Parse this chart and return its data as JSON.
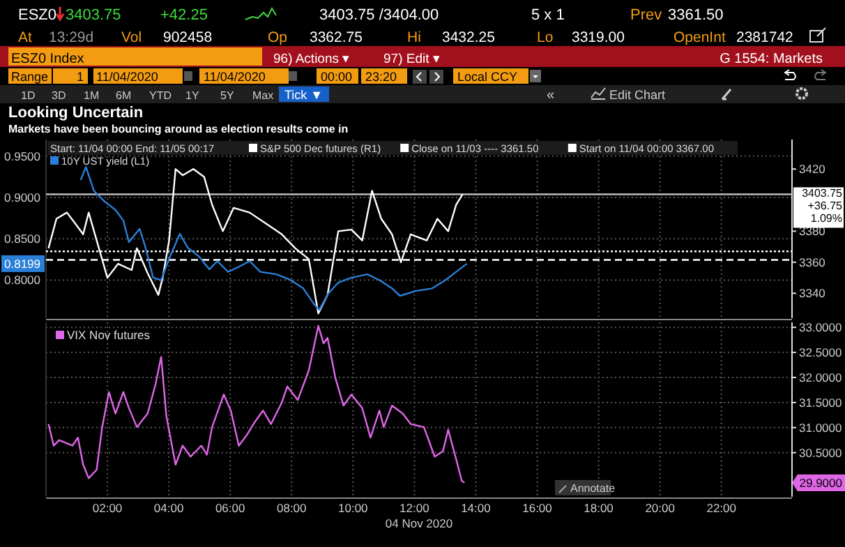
{
  "chart_data": [
    {
      "type": "line",
      "title": "Looking Uncertain",
      "subtitle": "Markets have been bouncing around as election results come in",
      "annotations": [
        "ESZ0",
        "3403.75",
        "+42.25",
        "3403.75 /3404.00",
        "5 x 1",
        "Prev",
        "3361.50",
        "At",
        "13:29d",
        "Vol",
        "902458",
        "Op",
        "3362.75",
        "Hi",
        "3432.25",
        "Lo",
        "3319.00",
        "OpenInt",
        "2381742",
        "ESZ0 Index",
        "96) Actions ▾",
        "97) Edit ▾",
        "G 1554: Markets",
        "Range",
        "1",
        "11/04/2020",
        "11/04/2020",
        "00:00",
        "23:20",
        "Local CCY",
        "1D",
        "3D",
        "1M",
        "6M",
        "YTD",
        "1Y",
        "5Y",
        "Max",
        "Tick ▼",
        "«",
        "Edit Chart",
        "Start: 11/04 00:00 End: 11/05 00:17",
        "0.8199"
      ],
      "xlim": [
        0,
        24.3
      ],
      "xticks": [
        {
          "value": 2,
          "label": null
        },
        {
          "value": 4,
          "label": null
        },
        {
          "value": 6,
          "label": null
        },
        {
          "value": 8,
          "label": null
        },
        {
          "value": 10,
          "label": null
        },
        {
          "value": 12,
          "label": null
        },
        {
          "value": 14,
          "label": null
        },
        {
          "value": 16,
          "label": null
        },
        {
          "value": 18,
          "label": null
        },
        {
          "value": 20,
          "label": null
        },
        {
          "value": 22,
          "label": null
        }
      ],
      "ylim": [
        0.754,
        0.97
      ],
      "yticks": [
        {
          "value": 0.8,
          "label": "0.8000"
        },
        {
          "value": 0.85,
          "label": "0.8500"
        },
        {
          "value": 0.9,
          "label": "0.9000"
        },
        {
          "value": 0.95,
          "label": "0.9500"
        }
      ],
      "y2lim": [
        3324,
        3439
      ],
      "y2ticks": [
        3340,
        3360,
        3380,
        3420
      ],
      "tick_labels": "y",
      "grid": true,
      "legend": "top left",
      "line_style": "solid",
      "ref_lines": [
        {
          "axis": "y2",
          "value": 3361.5,
          "label": "Close on 11/03 ---- 3361.50",
          "color": "#ffffff",
          "line_style": "dashed"
        },
        {
          "axis": "y2",
          "value": 3367,
          "label": "Start on 11/04 00:00 3367.00",
          "color": "#ffffff",
          "line_style": "dotted"
        },
        {
          "axis": "y2",
          "value": 3403.75,
          "label": "3403.75 +36.75 1.09%",
          "color": "#bbbbbb",
          "line_style": "solid"
        }
      ],
      "series": [
        {
          "name": "S&P 500 Dec futures (R1)",
          "color": "#ffffff",
          "axis": "y2",
          "x": [
            0.08,
            0.34,
            0.68,
            0.95,
            1.21,
            1.39,
            1.65,
            2.0,
            2.35,
            2.79,
            2.96,
            3.31,
            3.66,
            3.8,
            4.01,
            4.22,
            4.45,
            4.8,
            5.15,
            5.41,
            5.76,
            6.11,
            6.63,
            7.16,
            7.68,
            8.12,
            8.56,
            8.87,
            9.17,
            9.52,
            9.95,
            10.3,
            10.62,
            10.92,
            11.27,
            11.56,
            11.88,
            12.4,
            12.75,
            13.1,
            13.36,
            13.57
          ],
          "values": [
            3369,
            3388,
            3392,
            3385,
            3378,
            3392,
            3374,
            3350,
            3359,
            3355,
            3369,
            3353,
            3339,
            3350,
            3374,
            3420,
            3416,
            3420,
            3415,
            3397,
            3380,
            3395,
            3392,
            3385,
            3378,
            3369,
            3362,
            3327,
            3339,
            3380,
            3381,
            3374,
            3406,
            3388,
            3378,
            3360,
            3378,
            3374,
            3388,
            3380,
            3397,
            3403.75
          ]
        },
        {
          "name": "10Y UST yield (L1)",
          "color": "#2a7fd8",
          "x": [
            1.13,
            1.3,
            1.56,
            1.91,
            2.26,
            2.52,
            2.7,
            3.05,
            3.22,
            3.49,
            3.75,
            4.01,
            4.36,
            4.62,
            4.97,
            5.32,
            5.58,
            5.93,
            6.28,
            6.63,
            6.98,
            7.51,
            7.97,
            8.38,
            8.73,
            8.9,
            9.2,
            9.52,
            9.95,
            10.47,
            10.86,
            11.27,
            11.53,
            12.06,
            12.58,
            13.01,
            13.36,
            13.71
          ],
          "values": [
            0.921,
            0.937,
            0.908,
            0.895,
            0.885,
            0.872,
            0.846,
            0.862,
            0.842,
            0.803,
            0.8,
            0.826,
            0.856,
            0.839,
            0.829,
            0.813,
            0.823,
            0.81,
            0.816,
            0.823,
            0.81,
            0.807,
            0.8,
            0.79,
            0.771,
            0.764,
            0.784,
            0.797,
            0.803,
            0.807,
            0.8,
            0.79,
            0.781,
            0.787,
            0.79,
            0.8,
            0.81,
            0.8199
          ]
        }
      ]
    },
    {
      "type": "line",
      "annotations": [
        "Annotate",
        "29.9000"
      ],
      "xlabel": "04 Nov 2020",
      "xlim": [
        0,
        24.3
      ],
      "xticks": [
        {
          "value": 2,
          "label": "02:00"
        },
        {
          "value": 4,
          "label": "04:00"
        },
        {
          "value": 6,
          "label": "06:00"
        },
        {
          "value": 8,
          "label": "08:00"
        },
        {
          "value": 10,
          "label": "10:00"
        },
        {
          "value": 12,
          "label": "12:00"
        },
        {
          "value": 14,
          "label": "14:00"
        },
        {
          "value": 16,
          "label": "16:00"
        },
        {
          "value": 18,
          "label": "18:00"
        },
        {
          "value": 20,
          "label": "20:00"
        },
        {
          "value": 22,
          "label": "22:00"
        }
      ],
      "ylim": [
        29.62,
        33.1
      ],
      "yticks": [
        {
          "value": 30.5,
          "label": "30.5000"
        },
        {
          "value": 31,
          "label": "31.0000"
        },
        {
          "value": 31.5,
          "label": "31.5000"
        },
        {
          "value": 32,
          "label": "32.0000"
        },
        {
          "value": 32.5,
          "label": "32.5000"
        },
        {
          "value": 33,
          "label": "33.0000"
        }
      ],
      "grid": true,
      "legend": "top left",
      "line_style": "solid",
      "series": [
        {
          "name": "VIX Nov futures",
          "color": "#e066e8",
          "x": [
            0.08,
            0.25,
            0.43,
            0.86,
            1.04,
            1.21,
            1.39,
            1.65,
            1.83,
            2.05,
            2.26,
            2.52,
            2.7,
            2.96,
            3.31,
            3.57,
            3.75,
            3.92,
            4.22,
            4.45,
            4.71,
            5.06,
            5.24,
            5.41,
            5.79,
            6.02,
            6.28,
            6.55,
            6.81,
            7.07,
            7.33,
            7.68,
            7.86,
            8.2,
            8.56,
            8.87,
            9.04,
            9.17,
            9.43,
            9.69,
            9.95,
            10.3,
            10.57,
            10.86,
            11.0,
            11.27,
            11.62,
            11.88,
            12.31,
            12.66,
            12.93,
            13.1,
            13.36,
            13.54,
            13.63
          ],
          "values": [
            31.07,
            30.64,
            30.75,
            30.64,
            30.8,
            30.26,
            29.99,
            30.16,
            31.01,
            31.71,
            31.28,
            31.71,
            31.39,
            31.01,
            31.28,
            31.87,
            32.41,
            31.23,
            30.26,
            30.64,
            30.42,
            30.64,
            30.46,
            31.01,
            31.66,
            31.34,
            30.64,
            30.86,
            31.12,
            31.34,
            31.07,
            31.5,
            31.82,
            31.55,
            32.14,
            33.03,
            32.68,
            32.79,
            31.98,
            31.44,
            31.66,
            31.39,
            30.8,
            31.34,
            31.01,
            31.44,
            31.28,
            31.07,
            31.01,
            30.42,
            30.53,
            30.96,
            30.37,
            29.94,
            29.9
          ]
        }
      ]
    }
  ]
}
